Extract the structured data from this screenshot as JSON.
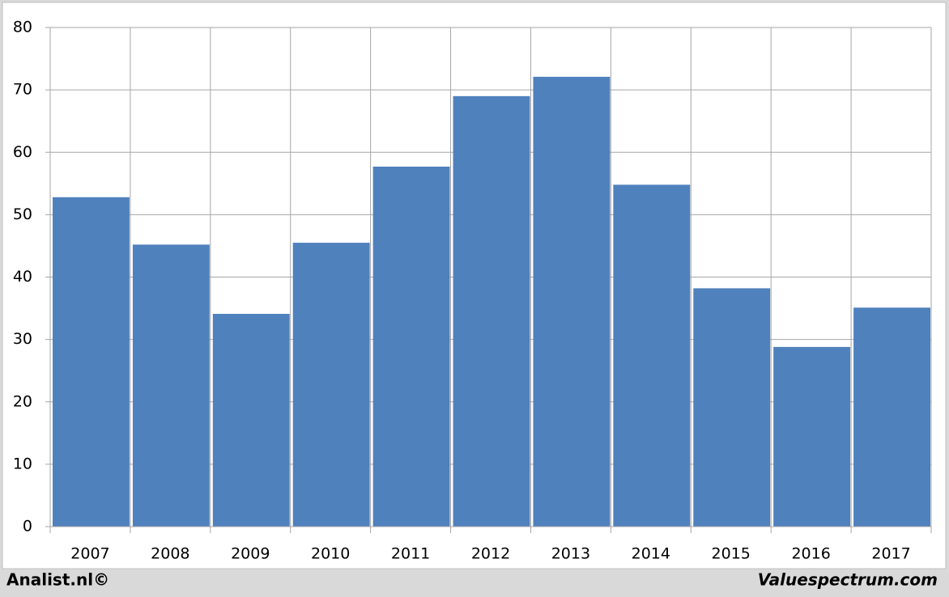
{
  "chart_data": {
    "type": "bar",
    "categories": [
      "2007",
      "2008",
      "2009",
      "2010",
      "2011",
      "2012",
      "2013",
      "2014",
      "2015",
      "2016",
      "2017"
    ],
    "values": [
      52.8,
      45.2,
      34.1,
      45.5,
      57.7,
      69.0,
      72.1,
      54.8,
      38.2,
      28.8,
      35.1
    ],
    "color": "#4f81bd",
    "ylim": [
      0,
      80
    ],
    "yticks": [
      0,
      10,
      20,
      30,
      40,
      50,
      60,
      70,
      80
    ],
    "grid": true
  },
  "footer": {
    "left": "Analist.nl©",
    "right": "Valuespectrum.com"
  }
}
